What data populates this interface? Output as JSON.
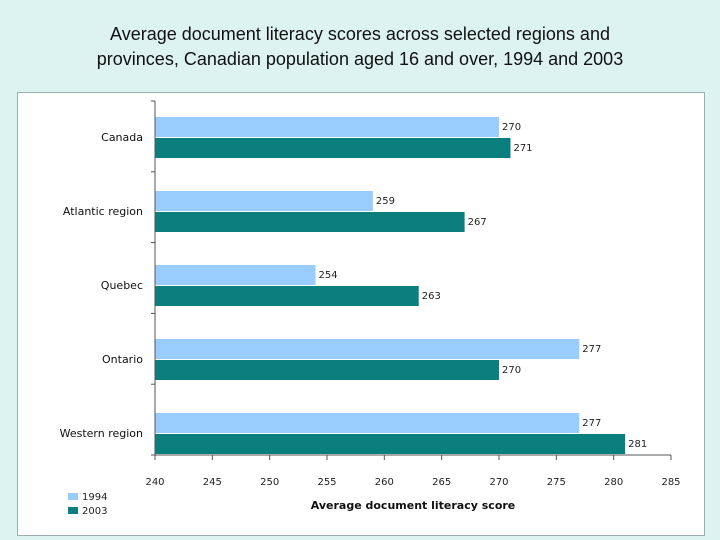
{
  "title_line1": "Average document literacy scores across selected regions and",
  "title_line2": "provinces, Canadian population aged 16 and over, 1994 and 2003",
  "chart_data": {
    "type": "bar",
    "orientation": "horizontal",
    "title": "Average document literacy scores across selected regions and provinces, Canadian population aged 16 and over, 1994 and 2003",
    "categories": [
      "Canada",
      "Atlantic region",
      "Quebec",
      "Ontario",
      "Western region"
    ],
    "series": [
      {
        "name": "1994",
        "values": [
          270,
          259,
          254,
          277,
          277
        ],
        "color": "#99ccff"
      },
      {
        "name": "2003",
        "values": [
          271,
          267,
          263,
          270,
          281
        ],
        "color": "#0b7f7d"
      }
    ],
    "xlabel": "Average document literacy score",
    "ylabel": "",
    "xlim": [
      240,
      285
    ],
    "xticks": [
      240,
      245,
      250,
      255,
      260,
      265,
      270,
      275,
      280,
      285
    ],
    "grid": false,
    "legend": "bottom-left"
  }
}
